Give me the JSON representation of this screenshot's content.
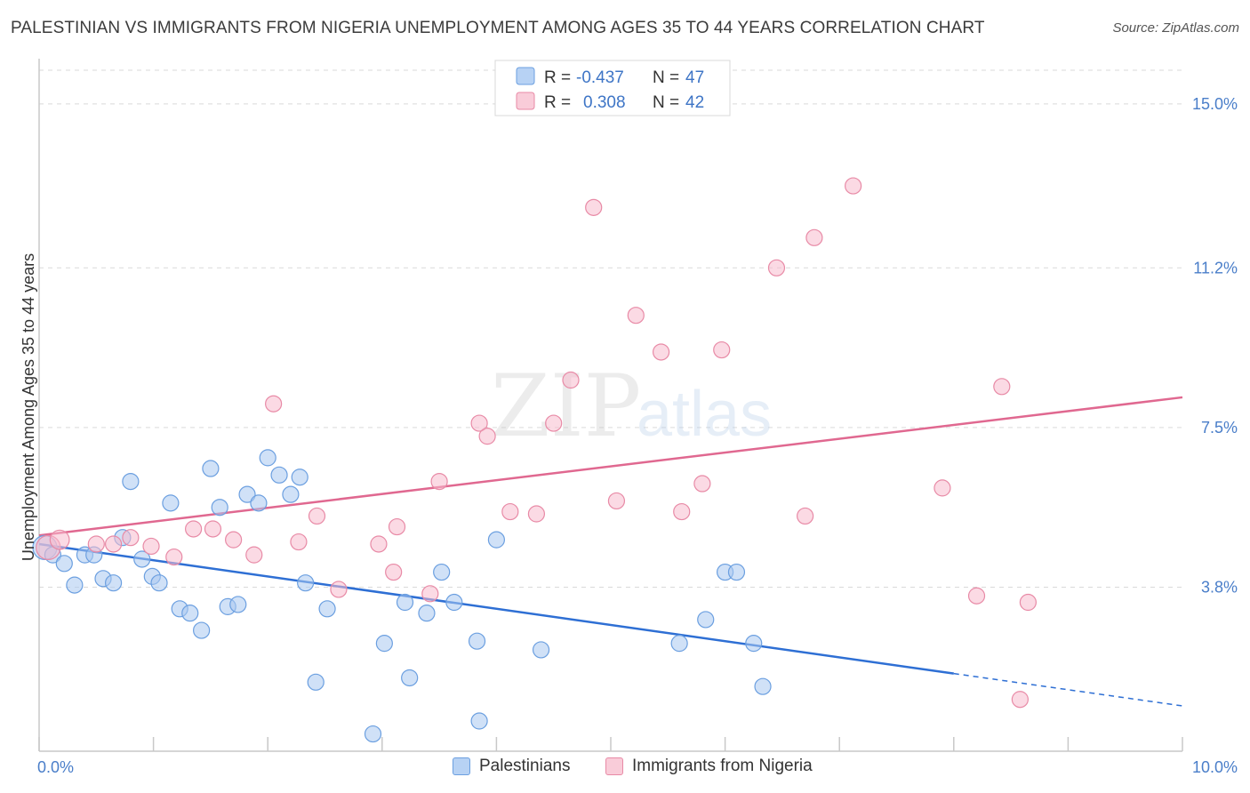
{
  "title": "PALESTINIAN VS IMMIGRANTS FROM NIGERIA UNEMPLOYMENT AMONG AGES 35 TO 44 YEARS CORRELATION CHART",
  "source": "Source: ZipAtlas.com",
  "watermark": {
    "zip": "ZIP",
    "atlas": "atlas"
  },
  "colors": {
    "blue_fill": "#a9c8f0",
    "blue_stroke": "#6b9fe0",
    "blue_line": "#2e6fd4",
    "pink_fill": "#f7bccd",
    "pink_stroke": "#e88aa6",
    "pink_line": "#e06890",
    "grid": "#d9d9d9",
    "tick_text": "#4a7ec9"
  },
  "legend": {
    "rows": [
      {
        "r_label": "R =",
        "r_value": "-0.437",
        "n_label": "N =",
        "n_value": "47"
      },
      {
        "r_label": "R =",
        "r_value": "0.308",
        "n_label": "N =",
        "n_value": "42"
      }
    ]
  },
  "bottom_legend": {
    "series1": "Palestinians",
    "series2": "Immigrants from Nigeria"
  },
  "chart_data": {
    "type": "scatter",
    "title": "PALESTINIAN VS IMMIGRANTS FROM NIGERIA UNEMPLOYMENT AMONG AGES 35 TO 44 YEARS CORRELATION CHART",
    "xlabel": "",
    "ylabel": "Unemployment Among Ages 35 to 44 years",
    "xlim": [
      0,
      10
    ],
    "ylim": [
      0,
      15.8
    ],
    "x_tick_labels": [
      "0.0%",
      "10.0%"
    ],
    "y_ticks": [
      {
        "value": 3.8,
        "label": "3.8%"
      },
      {
        "value": 7.5,
        "label": "7.5%"
      },
      {
        "value": 11.2,
        "label": "11.2%"
      },
      {
        "value": 15.0,
        "label": "15.0%"
      }
    ],
    "grid": true,
    "legend_position": "top-center",
    "series": [
      {
        "name": "Palestinians",
        "r": -0.437,
        "n": 47,
        "trend": {
          "x0": 0.0,
          "y0": 4.8,
          "x1": 8.0,
          "y1": 1.8,
          "dash_to_x": 10.0,
          "dash_to_y": 1.05
        },
        "points": [
          [
            0.05,
            4.72,
            1.5
          ],
          [
            0.12,
            4.55,
            1
          ],
          [
            0.22,
            4.35,
            1
          ],
          [
            0.31,
            3.85,
            1
          ],
          [
            0.4,
            4.55,
            1
          ],
          [
            0.48,
            4.55,
            1
          ],
          [
            0.56,
            4.0,
            1
          ],
          [
            0.65,
            3.9,
            1
          ],
          [
            0.73,
            4.95,
            1
          ],
          [
            0.8,
            6.25,
            1
          ],
          [
            0.9,
            4.45,
            1
          ],
          [
            0.99,
            4.05,
            1
          ],
          [
            1.05,
            3.9,
            1
          ],
          [
            1.15,
            5.75,
            1
          ],
          [
            1.23,
            3.3,
            1
          ],
          [
            1.32,
            3.2,
            1
          ],
          [
            1.42,
            2.8,
            1
          ],
          [
            1.5,
            6.55,
            1
          ],
          [
            1.58,
            5.65,
            1
          ],
          [
            1.65,
            3.35,
            1
          ],
          [
            1.74,
            3.4,
            1
          ],
          [
            1.82,
            5.95,
            1
          ],
          [
            1.92,
            5.75,
            1
          ],
          [
            2.0,
            6.8,
            1
          ],
          [
            2.1,
            6.4,
            1
          ],
          [
            2.2,
            5.95,
            1
          ],
          [
            2.28,
            6.35,
            1
          ],
          [
            2.33,
            3.9,
            1
          ],
          [
            2.42,
            1.6,
            1
          ],
          [
            2.52,
            3.3,
            1
          ],
          [
            2.92,
            0.4,
            1
          ],
          [
            3.02,
            2.5,
            1
          ],
          [
            3.2,
            3.45,
            1
          ],
          [
            3.24,
            1.7,
            1
          ],
          [
            3.39,
            3.2,
            1
          ],
          [
            3.52,
            4.15,
            1
          ],
          [
            3.63,
            3.45,
            1
          ],
          [
            3.83,
            2.55,
            1
          ],
          [
            3.85,
            0.7,
            1
          ],
          [
            4.0,
            4.9,
            1
          ],
          [
            4.39,
            2.35,
            1
          ],
          [
            5.6,
            2.5,
            1
          ],
          [
            5.83,
            3.05,
            1
          ],
          [
            6.0,
            4.15,
            1
          ],
          [
            6.1,
            4.15,
            1
          ],
          [
            6.25,
            2.5,
            1
          ],
          [
            6.33,
            1.5,
            1
          ]
        ]
      },
      {
        "name": "Immigrants from Nigeria",
        "r": 0.308,
        "n": 42,
        "trend": {
          "x0": 0.0,
          "y0": 5.0,
          "x1": 10.0,
          "y1": 8.2
        },
        "points": [
          [
            0.08,
            4.72,
            1.5
          ],
          [
            0.18,
            4.9,
            1.2
          ],
          [
            0.5,
            4.8,
            1
          ],
          [
            0.65,
            4.8,
            1
          ],
          [
            0.8,
            4.95,
            1
          ],
          [
            0.98,
            4.75,
            1
          ],
          [
            1.18,
            4.5,
            1
          ],
          [
            1.35,
            5.15,
            1
          ],
          [
            1.52,
            5.15,
            1
          ],
          [
            1.7,
            4.9,
            1
          ],
          [
            1.88,
            4.55,
            1
          ],
          [
            2.05,
            8.05,
            1
          ],
          [
            2.27,
            4.85,
            1
          ],
          [
            2.43,
            5.45,
            1
          ],
          [
            2.62,
            3.75,
            1
          ],
          [
            2.97,
            4.8,
            1
          ],
          [
            3.1,
            4.15,
            1
          ],
          [
            3.13,
            5.2,
            1
          ],
          [
            3.42,
            3.65,
            1
          ],
          [
            3.5,
            6.25,
            1
          ],
          [
            3.85,
            7.6,
            1
          ],
          [
            3.92,
            7.3,
            1
          ],
          [
            4.12,
            5.55,
            1
          ],
          [
            4.35,
            5.5,
            1
          ],
          [
            4.5,
            7.6,
            1
          ],
          [
            4.65,
            8.6,
            1
          ],
          [
            4.85,
            12.6,
            1
          ],
          [
            5.05,
            5.8,
            1
          ],
          [
            5.22,
            10.1,
            1
          ],
          [
            5.44,
            9.25,
            1
          ],
          [
            5.62,
            5.55,
            1
          ],
          [
            5.8,
            6.2,
            1
          ],
          [
            5.97,
            9.3,
            1
          ],
          [
            6.45,
            11.2,
            1
          ],
          [
            6.7,
            5.45,
            1
          ],
          [
            6.78,
            11.9,
            1
          ],
          [
            7.12,
            13.1,
            1
          ],
          [
            7.9,
            6.1,
            1
          ],
          [
            8.2,
            3.6,
            1
          ],
          [
            8.42,
            8.45,
            1
          ],
          [
            8.58,
            1.2,
            1
          ],
          [
            8.65,
            3.45,
            1
          ]
        ]
      }
    ]
  }
}
